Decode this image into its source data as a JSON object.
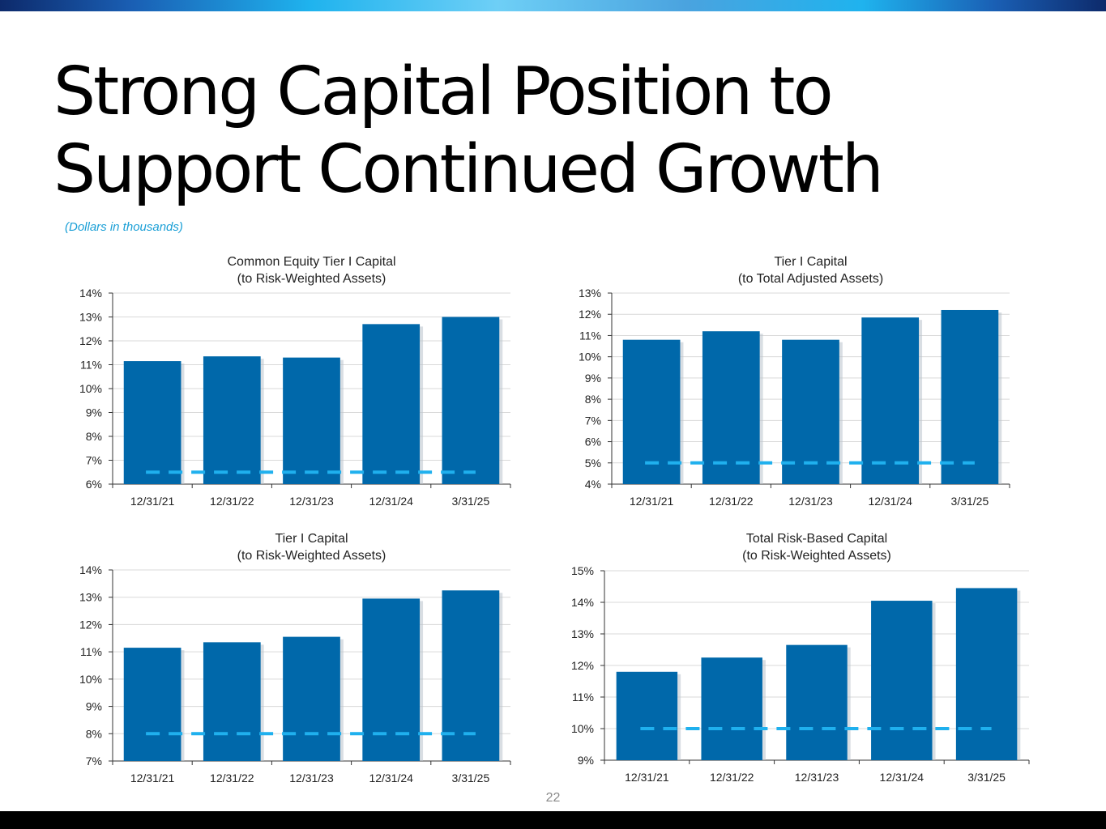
{
  "page": {
    "title_line1": "Strong Capital Position to",
    "title_line2": "Support Continued Growth",
    "subnote": "(Dollars in thousands)",
    "page_number": "22"
  },
  "colors": {
    "bar": "#0068aa",
    "threshold": "#1fb0ee",
    "grid": "#d9d9d9",
    "axis": "#333333",
    "text": "#222222"
  },
  "chart_data": [
    {
      "type": "bar",
      "title_line1": "Common Equity Tier I Capital",
      "title_line2": "(to Risk-Weighted Assets)",
      "categories": [
        "12/31/21",
        "12/31/22",
        "12/31/23",
        "12/31/24",
        "3/31/25"
      ],
      "values": [
        11.15,
        11.35,
        11.3,
        12.7,
        13.0
      ],
      "ylim": [
        6,
        14
      ],
      "ystep": 1,
      "yticks": [
        "6%",
        "7%",
        "8%",
        "9%",
        "10%",
        "11%",
        "12%",
        "13%",
        "14%"
      ],
      "threshold": 6.5,
      "unit": "%"
    },
    {
      "type": "bar",
      "title_line1": "Tier I Capital",
      "title_line2": "(to Total Adjusted Assets)",
      "categories": [
        "12/31/21",
        "12/31/22",
        "12/31/23",
        "12/31/24",
        "3/31/25"
      ],
      "values": [
        10.8,
        11.2,
        10.8,
        11.85,
        12.2
      ],
      "ylim": [
        4,
        13
      ],
      "ystep": 1,
      "yticks": [
        "4%",
        "5%",
        "6%",
        "7%",
        "8%",
        "9%",
        "10%",
        "11%",
        "12%",
        "13%"
      ],
      "threshold": 5.0,
      "unit": "%"
    },
    {
      "type": "bar",
      "title_line1": "Tier I Capital",
      "title_line2": "(to Risk-Weighted Assets)",
      "categories": [
        "12/31/21",
        "12/31/22",
        "12/31/23",
        "12/31/24",
        "3/31/25"
      ],
      "values": [
        11.15,
        11.35,
        11.55,
        12.95,
        13.25
      ],
      "ylim": [
        7,
        14
      ],
      "ystep": 1,
      "yticks": [
        "7%",
        "8%",
        "9%",
        "10%",
        "11%",
        "12%",
        "13%",
        "14%"
      ],
      "threshold": 8.0,
      "unit": "%"
    },
    {
      "type": "bar",
      "title_line1": "Total Risk-Based Capital",
      "title_line2": "(to Risk-Weighted Assets)",
      "categories": [
        "12/31/21",
        "12/31/22",
        "12/31/23",
        "12/31/24",
        "3/31/25"
      ],
      "values": [
        11.8,
        12.25,
        12.65,
        14.05,
        14.45
      ],
      "ylim": [
        9,
        15
      ],
      "ystep": 1,
      "yticks": [
        "9%",
        "10%",
        "11%",
        "12%",
        "13%",
        "14%",
        "15%"
      ],
      "threshold": 10.0,
      "unit": "%"
    }
  ]
}
